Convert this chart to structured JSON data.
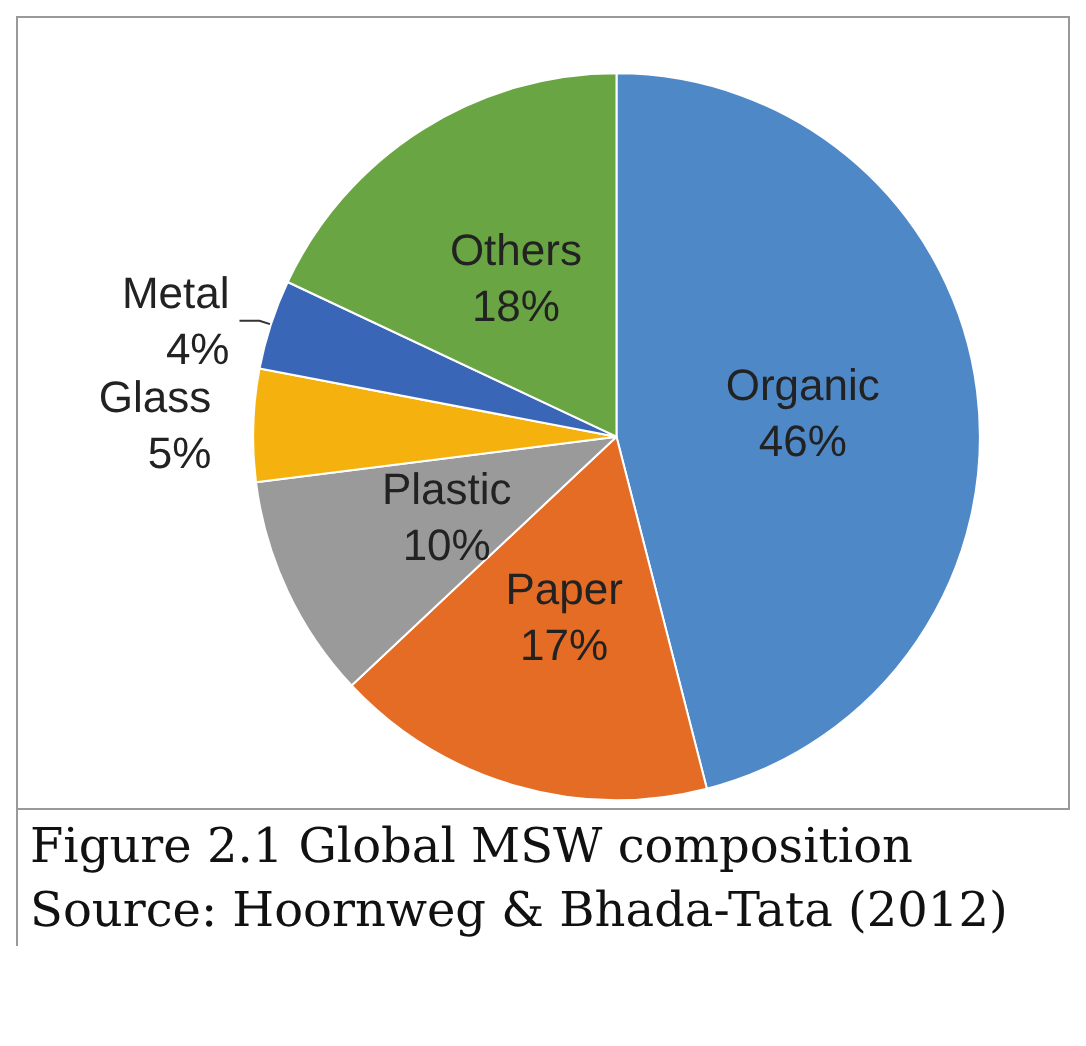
{
  "chart_data": {
    "type": "pie",
    "categories": [
      "Organic",
      "Paper",
      "Plastic",
      "Glass",
      "Metal",
      "Others"
    ],
    "values": [
      46,
      17,
      10,
      5,
      4,
      18
    ],
    "value_labels": [
      "46%",
      "17%",
      "10%",
      "5%",
      "4%",
      "18%"
    ],
    "colors": [
      "#4f88c6",
      "#e46c25",
      "#9a9a9a",
      "#f5b20f",
      "#3a66b8",
      "#6aa544"
    ],
    "data_labels": true,
    "annotations": [
      "Figure 2.1 Global MSW composition",
      "Source: Hoornweg & Bhada-Tata (2012)"
    ]
  }
}
